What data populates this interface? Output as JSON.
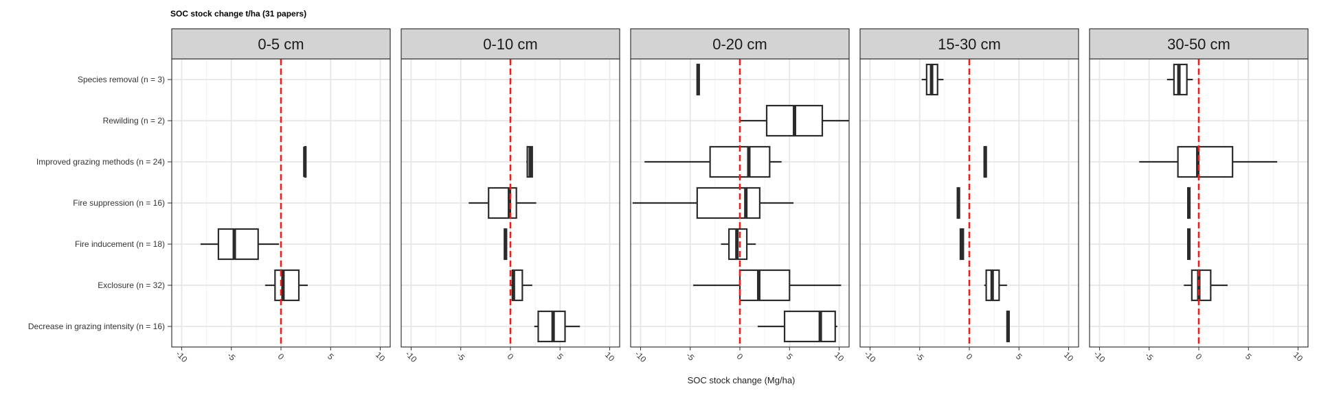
{
  "chart_data": {
    "type": "boxplot",
    "title": "SOC stock change t/ha (31 papers)",
    "xlabel": "SOC stock change (Mg/ha)",
    "ylabel": "",
    "xlim": [
      -11,
      11
    ],
    "xticks": [
      -10,
      -5,
      0,
      5,
      10
    ],
    "xtick_labels": [
      "-10",
      "-5",
      "0",
      "5",
      "10"
    ],
    "reference_line": {
      "x": 0,
      "color": "#ee1c1c",
      "style": "dashed"
    },
    "grid": true,
    "categories": [
      "Species removal (n = 3)",
      "Rewilding (n = 2)",
      "Improved grazing methods (n = 24)",
      "Fire suppression (n = 16)",
      "Fire inducement (n = 18)",
      "Exclosure (n = 32)",
      "Decrease in grazing intensity (n = 16)"
    ],
    "panels": [
      {
        "label": "0-5 cm",
        "boxes": [
          {
            "category": "Improved grazing methods (n = 24)",
            "min": 2.4,
            "q1": 2.4,
            "median": 2.4,
            "q3": 2.5,
            "max": 2.5
          },
          {
            "category": "Fire inducement (n = 18)",
            "min": -8.1,
            "q1": -6.3,
            "median": -4.7,
            "q3": -2.3,
            "max": -0.2
          },
          {
            "category": "Exclosure (n = 32)",
            "min": -1.6,
            "q1": -0.6,
            "median": 0.2,
            "q3": 1.8,
            "max": 2.7
          }
        ]
      },
      {
        "label": "0-10 cm",
        "boxes": [
          {
            "category": "Improved grazing methods (n = 24)",
            "min": 1.6,
            "q1": 1.7,
            "median": 2.0,
            "q3": 2.2,
            "max": 2.2
          },
          {
            "category": "Fire suppression (n = 16)",
            "min": -4.2,
            "q1": -2.2,
            "median": -0.1,
            "q3": 0.6,
            "max": 2.6
          },
          {
            "category": "Fire inducement (n = 18)",
            "min": -0.6,
            "q1": -0.6,
            "median": -0.5,
            "q3": -0.4,
            "max": -0.4
          },
          {
            "category": "Exclosure (n = 32)",
            "min": 0.0,
            "q1": 0.2,
            "median": 0.3,
            "q3": 1.2,
            "max": 2.2
          },
          {
            "category": "Decrease in grazing intensity (n = 16)",
            "min": 2.4,
            "q1": 2.8,
            "median": 4.3,
            "q3": 5.5,
            "max": 7.0
          }
        ]
      },
      {
        "label": "0-20 cm",
        "boxes": [
          {
            "category": "Species removal (n = 3)",
            "min": -4.3,
            "q1": -4.3,
            "median": -4.2,
            "q3": -4.1,
            "max": -4.1
          },
          {
            "category": "Rewilding (n = 2)",
            "min": 0.0,
            "q1": 2.7,
            "median": 5.5,
            "q3": 8.3,
            "max": 11.0
          },
          {
            "category": "Improved grazing methods (n = 24)",
            "min": -9.6,
            "q1": -3.0,
            "median": 0.9,
            "q3": 3.0,
            "max": 4.2
          },
          {
            "category": "Fire suppression (n = 16)",
            "min": -10.8,
            "q1": -4.3,
            "median": 0.6,
            "q3": 2.0,
            "max": 5.4
          },
          {
            "category": "Fire inducement (n = 18)",
            "min": -1.9,
            "q1": -1.1,
            "median": -0.3,
            "q3": 0.7,
            "max": 1.6
          },
          {
            "category": "Exclosure (n = 32)",
            "min": -4.7,
            "q1": 0.0,
            "median": 1.9,
            "q3": 5.0,
            "max": 10.2
          },
          {
            "category": "Decrease in grazing intensity (n = 16)",
            "min": 1.8,
            "q1": 4.5,
            "median": 8.1,
            "q3": 9.6,
            "max": 9.8
          }
        ]
      },
      {
        "label": "15-30 cm",
        "boxes": [
          {
            "category": "Species removal (n = 3)",
            "min": -4.8,
            "q1": -4.3,
            "median": -3.8,
            "q3": -3.2,
            "max": -2.6
          },
          {
            "category": "Improved grazing methods (n = 24)",
            "min": 1.5,
            "q1": 1.5,
            "median": 1.6,
            "q3": 1.7,
            "max": 1.7
          },
          {
            "category": "Fire suppression (n = 16)",
            "min": -1.2,
            "q1": -1.2,
            "median": -1.1,
            "q3": -1.0,
            "max": -1.0
          },
          {
            "category": "Fire inducement (n = 18)",
            "min": -0.9,
            "q1": -0.9,
            "median": -0.8,
            "q3": -0.6,
            "max": -0.6
          },
          {
            "category": "Exclosure (n = 32)",
            "min": 1.5,
            "q1": 1.7,
            "median": 2.3,
            "q3": 3.0,
            "max": 3.8
          },
          {
            "category": "Decrease in grazing intensity (n = 16)",
            "min": 3.8,
            "q1": 3.8,
            "median": 3.9,
            "q3": 4.0,
            "max": 4.0
          }
        ]
      },
      {
        "label": "30-50 cm",
        "boxes": [
          {
            "category": "Species removal (n = 3)",
            "min": -3.2,
            "q1": -2.5,
            "median": -2.0,
            "q3": -1.2,
            "max": -0.6
          },
          {
            "category": "Improved grazing methods (n = 24)",
            "min": -6.0,
            "q1": -2.1,
            "median": -0.1,
            "q3": 3.4,
            "max": 7.9
          },
          {
            "category": "Fire suppression (n = 16)",
            "min": -1.1,
            "q1": -1.1,
            "median": -1.0,
            "q3": -0.9,
            "max": -0.9
          },
          {
            "category": "Fire inducement (n = 18)",
            "min": -1.1,
            "q1": -1.1,
            "median": -1.0,
            "q3": -0.9,
            "max": -0.9
          },
          {
            "category": "Exclosure (n = 32)",
            "min": -1.5,
            "q1": -0.7,
            "median": 0.0,
            "q3": 1.2,
            "max": 2.9
          }
        ]
      }
    ]
  }
}
